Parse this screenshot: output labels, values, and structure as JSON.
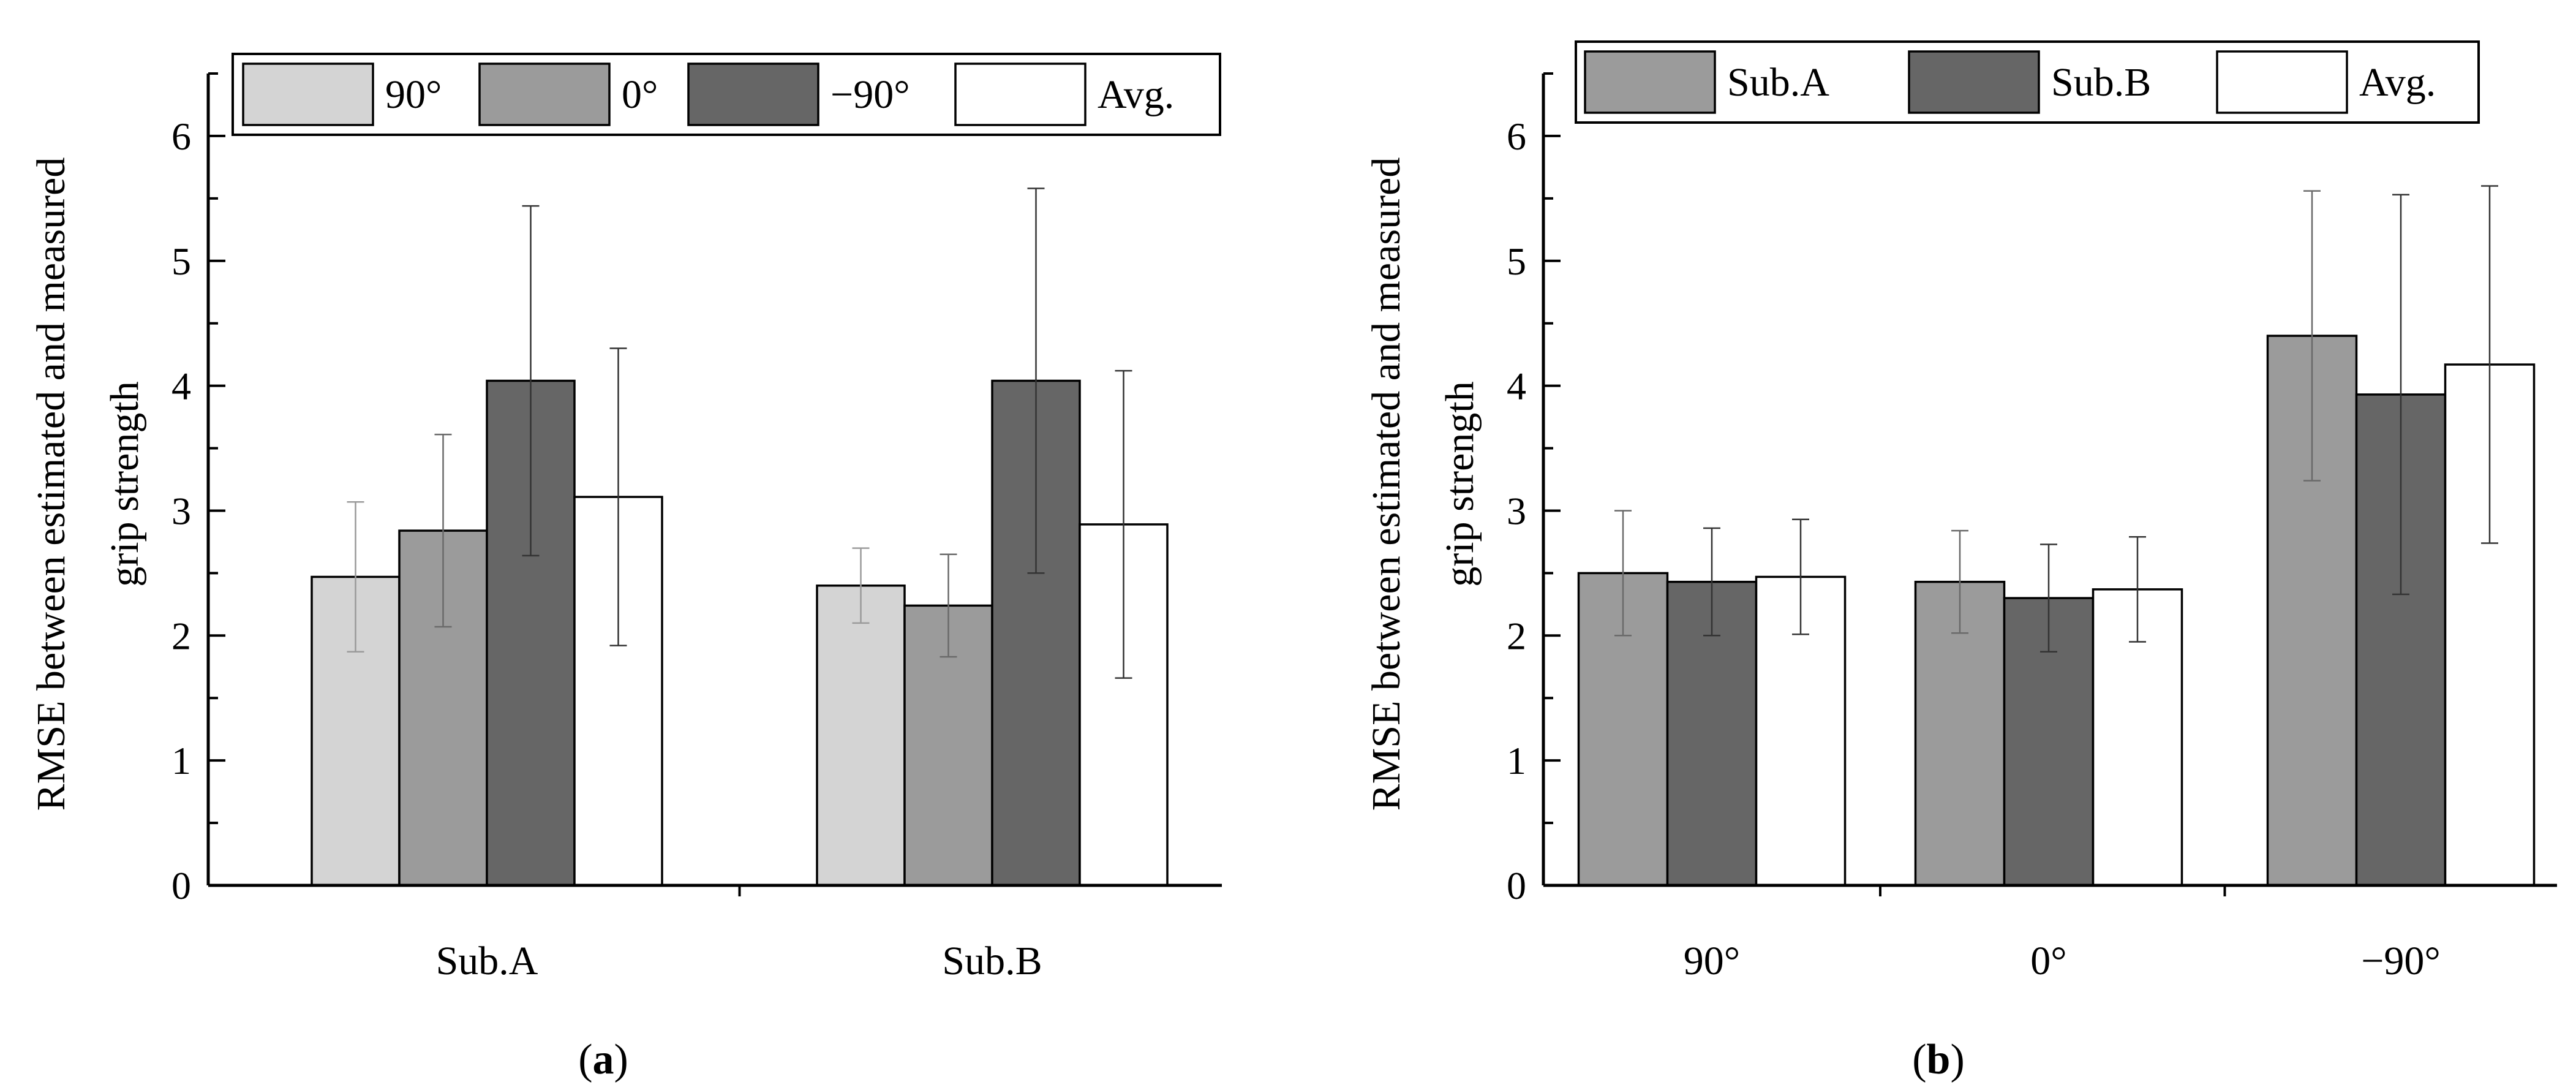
{
  "figure": {
    "panel_a_label": {
      "open": "(",
      "letter": "a",
      "close": ")"
    },
    "panel_b_label": {
      "open": "(",
      "letter": "b",
      "close": ")"
    }
  },
  "chart_data": [
    {
      "type": "bar",
      "panel": "a",
      "categories": [
        "Sub.A",
        "Sub.B"
      ],
      "series": [
        {
          "name": "90°",
          "color": "#d4d4d4",
          "values": [
            2.47,
            2.4
          ],
          "errors": [
            0.6,
            0.3
          ]
        },
        {
          "name": "0°",
          "color": "#9b9b9b",
          "values": [
            2.84,
            2.24
          ],
          "errors": [
            0.77,
            0.41
          ]
        },
        {
          "name": "−90°",
          "color": "#666666",
          "values": [
            4.04,
            4.04
          ],
          "errors": [
            1.4,
            1.54
          ]
        },
        {
          "name": "Avg.",
          "color": "#ffffff",
          "values": [
            3.11,
            2.89
          ],
          "errors": [
            1.19,
            1.23
          ]
        }
      ],
      "title": "",
      "xlabel": "",
      "ylabel_line1": "RMSE between estimated and measured",
      "ylabel_line2": "grip strength",
      "ylim": [
        0,
        6.5
      ],
      "yticks": [
        "0",
        "1",
        "2",
        "3",
        "4",
        "5",
        "6"
      ],
      "legend_position": "top"
    },
    {
      "type": "bar",
      "panel": "b",
      "categories": [
        "90°",
        "0°",
        "−90°"
      ],
      "series": [
        {
          "name": "Sub.A",
          "color": "#9b9b9b",
          "values": [
            2.5,
            2.43,
            4.4
          ],
          "errors": [
            0.5,
            0.41,
            1.16
          ]
        },
        {
          "name": "Sub.B",
          "color": "#666666",
          "values": [
            2.43,
            2.3,
            3.93
          ],
          "errors": [
            0.43,
            0.43,
            1.6
          ]
        },
        {
          "name": "Avg.",
          "color": "#ffffff",
          "values": [
            2.47,
            2.37,
            4.17
          ],
          "errors": [
            0.46,
            0.42,
            1.43
          ]
        }
      ],
      "title": "",
      "xlabel": "",
      "ylabel_line1": "RMSE between estimated and measured",
      "ylabel_line2": "grip strength",
      "ylim": [
        0,
        6.5
      ],
      "yticks": [
        "0",
        "1",
        "2",
        "3",
        "4",
        "5",
        "6"
      ],
      "legend_position": "top"
    }
  ]
}
